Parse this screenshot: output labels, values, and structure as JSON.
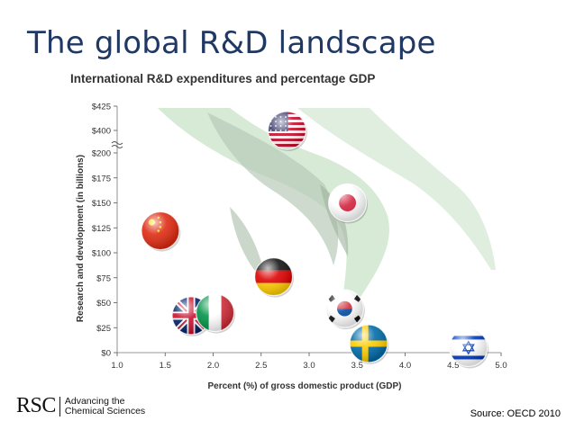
{
  "slide": {
    "title": "The global R&D landscape",
    "source": "Source: OECD 2010"
  },
  "logo": {
    "mark": "RSC",
    "line1": "Advancing the",
    "line2": "Chemical Sciences"
  },
  "chart_data": {
    "type": "scatter",
    "title": "International R&D expenditures and percentage GDP",
    "xlabel": "Percent (%) of gross domestic product (GDP)",
    "ylabel": "Research and development (in billions)",
    "xlim": [
      1.0,
      5.0
    ],
    "ylim": [
      0,
      425
    ],
    "x_ticks": [
      "1.0",
      "1.5",
      "2.0",
      "2.5",
      "3.0",
      "3.5",
      "4.0",
      "4.5",
      "5.0"
    ],
    "y_ticks": [
      "$0",
      "$25",
      "$50",
      "$75",
      "$100",
      "$125",
      "$150",
      "$175",
      "$200",
      "$400",
      "$425"
    ],
    "axis_break": "between $200 and $400",
    "grid": false,
    "points": [
      {
        "flag": "USA",
        "x": 2.77,
        "y": 400
      },
      {
        "flag": "Japan",
        "x": 3.4,
        "y": 150
      },
      {
        "flag": "China",
        "x": 1.45,
        "y": 122
      },
      {
        "flag": "Germany",
        "x": 2.63,
        "y": 76
      },
      {
        "flag": "South Korea",
        "x": 3.37,
        "y": 44
      },
      {
        "flag": "UK",
        "x": 1.77,
        "y": 37
      },
      {
        "flag": "Italy",
        "x": 2.02,
        "y": 40
      },
      {
        "flag": "Sweden",
        "x": 3.62,
        "y": 9
      },
      {
        "flag": "Israel",
        "x": 4.66,
        "y": 5
      }
    ]
  }
}
